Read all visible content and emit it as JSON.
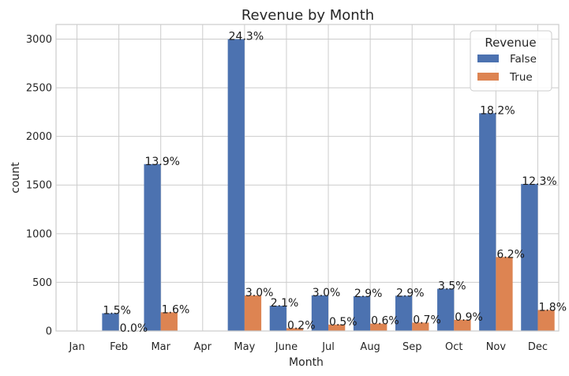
{
  "chart_data": {
    "type": "bar",
    "title": "Revenue by Month",
    "xlabel": "Month",
    "ylabel": "count",
    "categories": [
      "Jan",
      "Feb",
      "Mar",
      "Apr",
      "May",
      "June",
      "Jul",
      "Aug",
      "Sep",
      "Oct",
      "Nov",
      "Dec"
    ],
    "ylim": [
      0,
      3150
    ],
    "yticks": [
      0,
      500,
      1000,
      1500,
      2000,
      2500,
      3000
    ],
    "grid": true,
    "legend": {
      "title": "Revenue",
      "placement": "top-right"
    },
    "series": [
      {
        "name": "False",
        "color": "#4c72b0",
        "values": [
          0,
          182,
          1715,
          0,
          2999,
          259,
          366,
          357,
          362,
          434,
          2238,
          1511
        ],
        "labels": [
          "",
          "1.5%",
          "13.9%",
          "",
          "24.3%",
          "2.1%",
          "3.0%",
          "2.9%",
          "2.9%",
          "3.5%",
          "18.2%",
          "12.3%"
        ]
      },
      {
        "name": "True",
        "color": "#dd8452",
        "values": [
          0,
          2,
          192,
          0,
          365,
          29,
          66,
          76,
          86,
          115,
          760,
          216
        ],
        "labels": [
          "",
          "0.0%",
          "1.6%",
          "",
          "3.0%",
          "0.2%",
          "0.5%",
          "0.6%",
          "0.7%",
          "0.9%",
          "6.2%",
          "1.8%"
        ]
      }
    ]
  }
}
